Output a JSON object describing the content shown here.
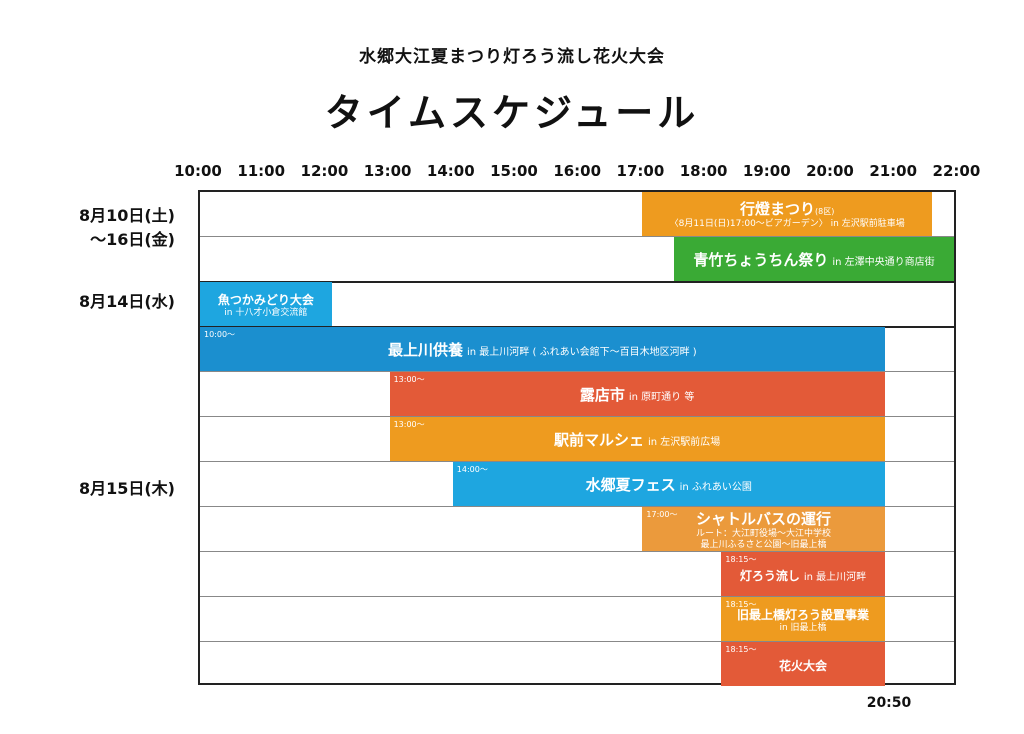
{
  "header": {
    "subtitle": "水郷大江夏まつり灯ろう流し花火大会",
    "title": "タイムスケジュール"
  },
  "end_label": "20:50",
  "chart_data": {
    "type": "gantt",
    "title": "タイムスケジュール",
    "subtitle": "水郷大江夏まつり灯ろう流し花火大会",
    "x_ticks": [
      "10:00",
      "11:00",
      "12:00",
      "13:00",
      "14:00",
      "15:00",
      "16:00",
      "17:00",
      "18:00",
      "19:00",
      "20:00",
      "21:00",
      "22:00"
    ],
    "x_range": [
      "10:00",
      "22:00"
    ],
    "date_groups": [
      {
        "label": "8月10日(土)\n～16日(金)",
        "rows": [
          0,
          1
        ]
      },
      {
        "label": "8月14日(水)",
        "rows": [
          2
        ]
      },
      {
        "label": "8月15日(木)",
        "rows": [
          3,
          4,
          5,
          6,
          7,
          8,
          9,
          10
        ]
      }
    ],
    "events": [
      {
        "row": 0,
        "start": "17:00",
        "end": "21:35",
        "color": "#ee9b1f",
        "name": "行燈まつり",
        "tag": "(8区)",
        "sub": "〈8月11日(日)17:00～ビアガーデン〉 in 左沢駅前駐車場"
      },
      {
        "row": 1,
        "start": "17:30",
        "end": "22:00",
        "color": "#3aaa35",
        "name": "青竹ちょうちん祭り",
        "loc": "in 左澤中央通り商店街"
      },
      {
        "row": 2,
        "start": "10:00",
        "end": "12:05",
        "color": "#1ea6e0",
        "name": "魚つかみどり大会",
        "sub": "in 十八才小倉交流館"
      },
      {
        "row": 3,
        "start": "10:00",
        "end": "20:50",
        "color": "#1b8fcf",
        "name": "最上川供養",
        "loc": "in 最上川河畔 ( ふれあい会館下～百目木地区河畔 )",
        "label_time": "10:00～"
      },
      {
        "row": 4,
        "start": "13:00",
        "end": "20:50",
        "color": "#e35a38",
        "name": "露店市",
        "loc": "in 原町通り 等",
        "label_time": "13:00～"
      },
      {
        "row": 5,
        "start": "13:00",
        "end": "20:50",
        "color": "#ee9b1f",
        "name": "駅前マルシェ",
        "loc": "in 左沢駅前広場",
        "label_time": "13:00～"
      },
      {
        "row": 6,
        "start": "14:00",
        "end": "20:50",
        "color": "#1ea6e0",
        "name": "水郷夏フェス",
        "loc": "in ふれあい公園",
        "label_time": "14:00～"
      },
      {
        "row": 7,
        "start": "17:00",
        "end": "20:50",
        "color": "#eb9a3c",
        "name": "シャトルバスの運行",
        "sub": "ルート：大江町役場～大江中学校",
        "sub2": "最上川ふるさと公園～旧最上橋",
        "label_time": "17:00～"
      },
      {
        "row": 8,
        "start": "18:15",
        "end": "20:50",
        "color": "#e35a38",
        "name": "灯ろう流し",
        "loc": "in 最上川河畔",
        "label_time": "18:15～"
      },
      {
        "row": 9,
        "start": "18:15",
        "end": "20:50",
        "color": "#ee9b1f",
        "name": "旧最上橋灯ろう設置事業",
        "sub": "in 旧最上橋",
        "label_time": "18:15～"
      },
      {
        "row": 10,
        "start": "18:15",
        "end": "20:50",
        "color": "#e35a38",
        "name": "花火大会",
        "label_time": "18:15～"
      }
    ]
  }
}
